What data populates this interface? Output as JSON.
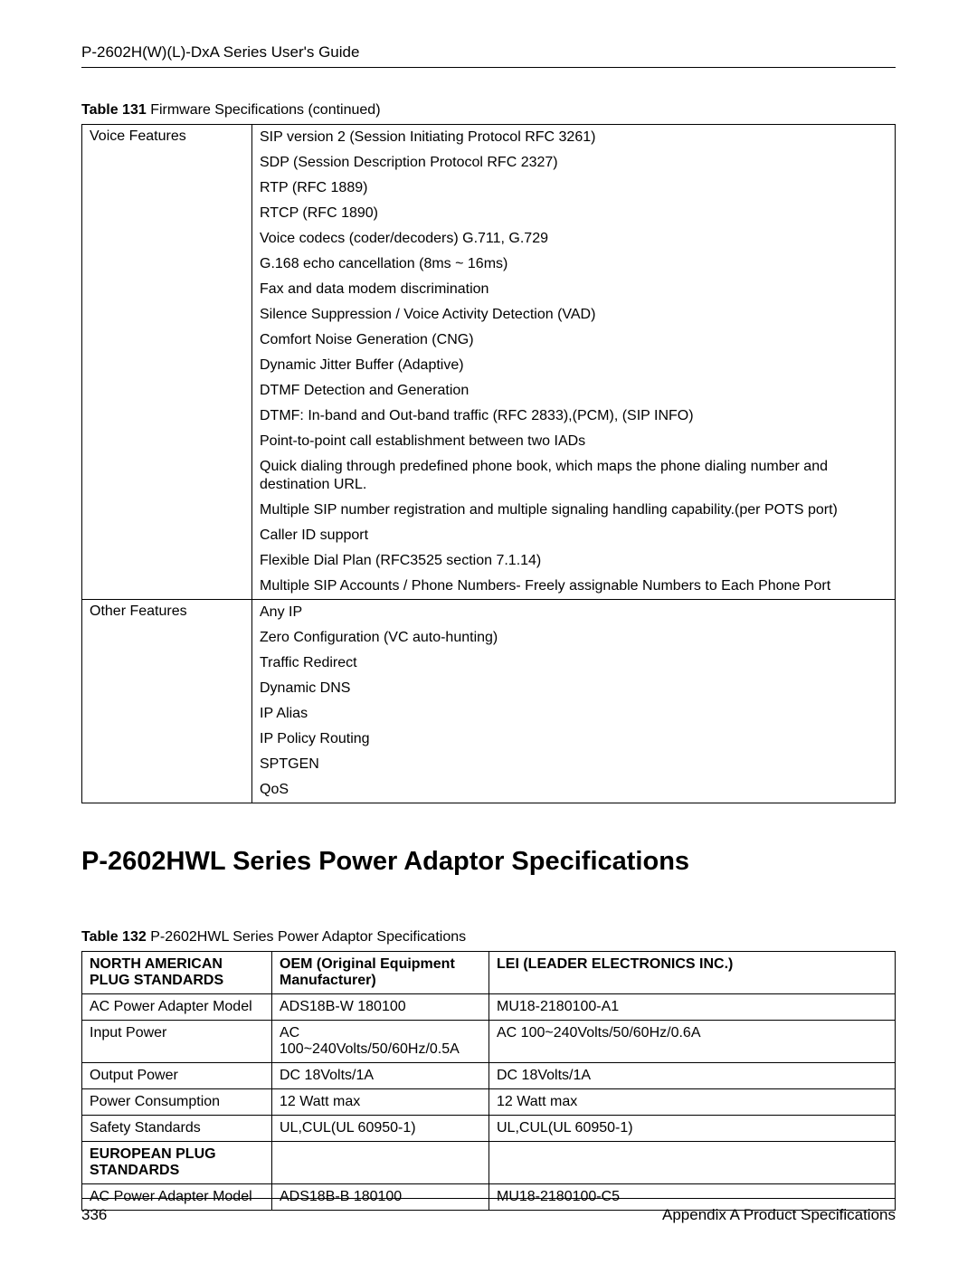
{
  "header": {
    "title": "P-2602H(W)(L)-DxA Series User's Guide"
  },
  "table1": {
    "caption_bold": "Table 131",
    "caption_rest": "   Firmware Specifications  (continued)",
    "rows": [
      {
        "label": "Voice Features",
        "items": [
          "SIP version 2 (Session Initiating Protocol RFC 3261)",
          "SDP (Session Description Protocol RFC 2327)",
          "RTP (RFC 1889)",
          "RTCP (RFC 1890)",
          "Voice codecs (coder/decoders) G.711, G.729",
          "G.168 echo cancellation (8ms ~ 16ms)",
          "Fax and data modem discrimination",
          "Silence Suppression / Voice Activity Detection (VAD)",
          "Comfort Noise Generation (CNG)",
          "Dynamic Jitter Buffer (Adaptive)",
          "DTMF Detection and Generation",
          "DTMF: In-band and Out-band traffic (RFC 2833),(PCM), (SIP INFO)",
          "Point-to-point call establishment between two IADs",
          "Quick dialing through predefined phone book, which maps the phone dialing number and destination URL.",
          "Multiple SIP number registration and multiple signaling handling capability.(per POTS port)",
          "Caller ID support",
          "Flexible Dial Plan (RFC3525 section 7.1.14)",
          "Multiple SIP Accounts / Phone Numbers- Freely assignable Numbers to Each Phone Port"
        ]
      },
      {
        "label": "Other Features",
        "items": [
          "Any IP",
          "Zero Configuration (VC auto-hunting)",
          "Traffic Redirect",
          "Dynamic DNS",
          "IP Alias",
          "IP Policy Routing",
          "SPTGEN",
          "QoS"
        ]
      }
    ]
  },
  "section_heading": "P-2602HWL Series Power Adaptor Specifications",
  "table2": {
    "caption_bold": "Table 132",
    "caption_rest": "   P-2602HWL Series Power Adaptor Specifications",
    "headers": [
      "NORTH AMERICAN PLUG STANDARDS",
      "OEM (Original Equipment Manufacturer)",
      "LEI (LEADER ELECTRONICS INC.)"
    ],
    "rows": [
      {
        "c1": "AC Power Adapter Model",
        "c2": "ADS18B-W 180100",
        "c3": "MU18-2180100-A1",
        "bold": false
      },
      {
        "c1": "Input Power",
        "c2": "AC 100~240Volts/50/60Hz/0.5A",
        "c3": "AC 100~240Volts/50/60Hz/0.6A",
        "bold": false
      },
      {
        "c1": "Output Power",
        "c2": "DC 18Volts/1A",
        "c3": "DC 18Volts/1A",
        "bold": false
      },
      {
        "c1": "Power Consumption",
        "c2": "12 Watt max",
        "c3": "12 Watt max",
        "bold": false
      },
      {
        "c1": "Safety Standards",
        "c2": "UL,CUL(UL 60950-1)",
        "c3": "UL,CUL(UL 60950-1)",
        "bold": false
      },
      {
        "c1": "EUROPEAN PLUG STANDARDS",
        "c2": "",
        "c3": "",
        "bold": true
      },
      {
        "c1": "AC Power Adapter Model",
        "c2": "ADS18B-B 180100",
        "c3": "MU18-2180100-C5",
        "bold": false
      }
    ]
  },
  "footer": {
    "page_number": "336",
    "section": "Appendix A Product Specifications"
  }
}
